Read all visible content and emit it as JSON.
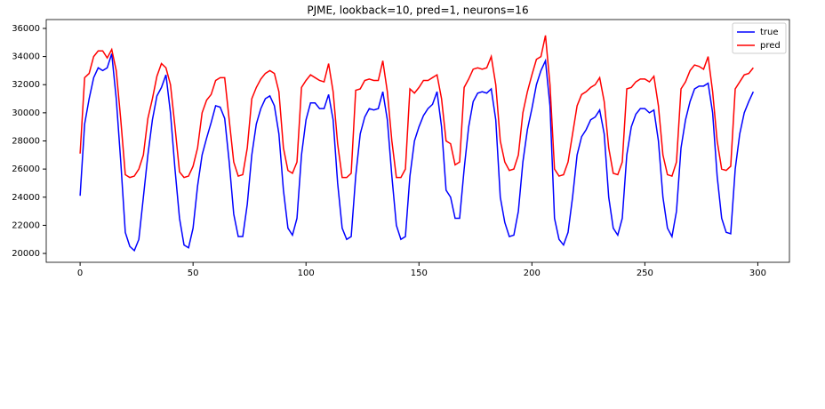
{
  "chart_data": {
    "type": "line",
    "title": "PJME, lookback=10, pred=1, neurons=16",
    "x": [
      0,
      2,
      4,
      6,
      8,
      10,
      12,
      14,
      16,
      18,
      20,
      22,
      24,
      26,
      28,
      30,
      32,
      34,
      36,
      38,
      40,
      42,
      44,
      46,
      48,
      50,
      52,
      54,
      56,
      58,
      60,
      62,
      64,
      66,
      68,
      70,
      72,
      74,
      76,
      78,
      80,
      82,
      84,
      86,
      88,
      90,
      92,
      94,
      96,
      98,
      100,
      102,
      104,
      106,
      108,
      110,
      112,
      114,
      116,
      118,
      120,
      122,
      124,
      126,
      128,
      130,
      132,
      134,
      136,
      138,
      140,
      142,
      144,
      146,
      148,
      150,
      152,
      154,
      156,
      158,
      160,
      162,
      164,
      166,
      168,
      170,
      172,
      174,
      176,
      178,
      180,
      182,
      184,
      186,
      188,
      190,
      192,
      194,
      196,
      198,
      200,
      202,
      204,
      206,
      208,
      210,
      212,
      214,
      216,
      218,
      220,
      222,
      224,
      226,
      228,
      230,
      232,
      234,
      236,
      238,
      240,
      242,
      244,
      246,
      248,
      250,
      252,
      254,
      256,
      258,
      260,
      262,
      264,
      266,
      268,
      270,
      272,
      274,
      276,
      278,
      280,
      282,
      284,
      286,
      288,
      290,
      292,
      294,
      296,
      298
    ],
    "series": [
      {
        "name": "true",
        "color": "#0000ff",
        "values": [
          24100,
          29200,
          31000,
          32500,
          33200,
          33000,
          33200,
          34200,
          31000,
          26500,
          21500,
          20500,
          20200,
          21000,
          24000,
          27000,
          29500,
          31200,
          31800,
          32700,
          30000,
          26000,
          22500,
          20600,
          20400,
          21800,
          24800,
          27000,
          28200,
          29300,
          30500,
          30400,
          29600,
          26500,
          22800,
          21200,
          21200,
          23500,
          27000,
          29200,
          30300,
          31000,
          31200,
          30500,
          28500,
          24500,
          21800,
          21300,
          22500,
          27000,
          29500,
          30700,
          30700,
          30300,
          30300,
          31300,
          29500,
          25000,
          21800,
          21000,
          21200,
          25500,
          28500,
          29700,
          30300,
          30200,
          30300,
          31500,
          29500,
          25500,
          22000,
          21000,
          21200,
          25500,
          28000,
          29000,
          29800,
          30300,
          30600,
          31500,
          29000,
          24500,
          24000,
          22500,
          22500,
          26000,
          29000,
          30800,
          31400,
          31500,
          31400,
          31700,
          29500,
          24000,
          22200,
          21200,
          21300,
          23000,
          26500,
          28800,
          30300,
          32000,
          33000,
          33700,
          30500,
          22500,
          21000,
          20600,
          21500,
          24000,
          27000,
          28300,
          28800,
          29500,
          29700,
          30200,
          28500,
          24000,
          21800,
          21300,
          22500,
          27000,
          29000,
          29900,
          30300,
          30300,
          30000,
          30200,
          28000,
          24000,
          21800,
          21200,
          23000,
          27500,
          29500,
          30800,
          31700,
          31900,
          31900,
          32100,
          30000,
          25500,
          22500,
          21500,
          21400,
          26000,
          28500,
          30000,
          30800,
          31500
        ]
      },
      {
        "name": "pred",
        "color": "#ff0000",
        "values": [
          27100,
          32500,
          32800,
          34000,
          34400,
          34400,
          33900,
          34500,
          33000,
          29500,
          25600,
          25400,
          25500,
          26000,
          27000,
          29600,
          31000,
          32600,
          33500,
          33200,
          32000,
          29000,
          25800,
          25400,
          25500,
          26200,
          27500,
          30000,
          30900,
          31300,
          32300,
          32500,
          32500,
          29500,
          26500,
          25500,
          25600,
          27500,
          31000,
          31800,
          32400,
          32800,
          33000,
          32800,
          31500,
          27500,
          25900,
          25700,
          26500,
          31800,
          32300,
          32700,
          32500,
          32300,
          32200,
          33500,
          31500,
          27800,
          25400,
          25400,
          25700,
          31600,
          31700,
          32300,
          32400,
          32300,
          32300,
          33700,
          31500,
          28000,
          25400,
          25400,
          26000,
          31700,
          31400,
          31800,
          32300,
          32300,
          32500,
          32700,
          31000,
          28000,
          27800,
          26300,
          26500,
          31800,
          32400,
          33100,
          33200,
          33100,
          33200,
          34000,
          32000,
          28000,
          26500,
          25900,
          26000,
          27000,
          30000,
          31500,
          32700,
          33800,
          34000,
          35500,
          32000,
          26000,
          25500,
          25600,
          26500,
          28500,
          30500,
          31300,
          31500,
          31800,
          32000,
          32500,
          30800,
          27500,
          25700,
          25600,
          26500,
          31700,
          31800,
          32200,
          32400,
          32400,
          32200,
          32600,
          30500,
          27000,
          25600,
          25500,
          26500,
          31700,
          32200,
          33000,
          33400,
          33300,
          33100,
          34000,
          31500,
          28000,
          26000,
          25900,
          26200,
          31700,
          32200,
          32700,
          32800,
          33200
        ]
      }
    ],
    "xlim": [
      -15,
      314
    ],
    "ylim": [
      19370,
      36630
    ],
    "xticks": [
      0,
      50,
      100,
      150,
      200,
      250,
      300
    ],
    "yticks": [
      20000,
      22000,
      24000,
      26000,
      28000,
      30000,
      32000,
      34000,
      36000
    ],
    "legend": "upper right"
  }
}
